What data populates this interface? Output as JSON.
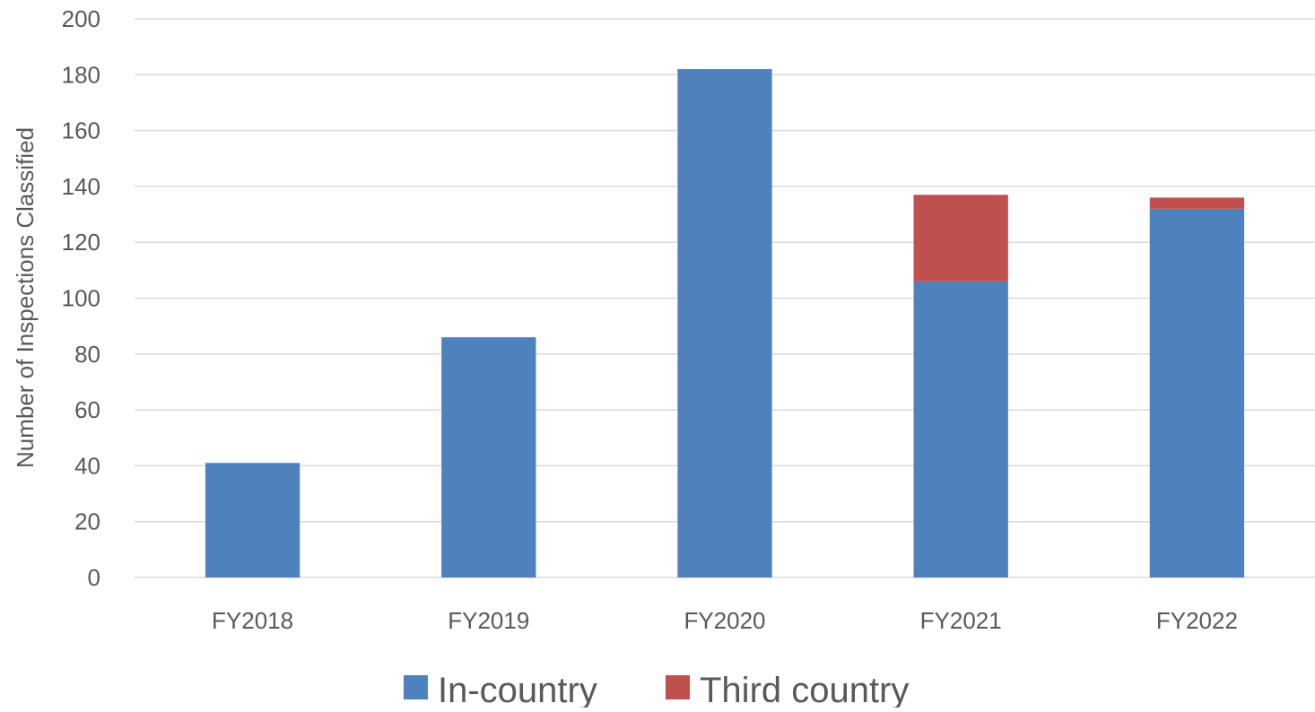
{
  "chart_data": {
    "type": "bar",
    "stacked": true,
    "title": "",
    "xlabel": "",
    "ylabel": "Number of Inspections Classified",
    "ylim": [
      0,
      200
    ],
    "yticks": [
      0,
      20,
      40,
      60,
      80,
      100,
      120,
      140,
      160,
      180,
      200
    ],
    "categories": [
      "FY2018",
      "FY2019",
      "FY2020",
      "FY2021",
      "FY2022"
    ],
    "series": [
      {
        "name": "In-country",
        "values": [
          41,
          86,
          182,
          106,
          132
        ],
        "color": "#4F81BD"
      },
      {
        "name": "Third country",
        "values": [
          0,
          0,
          0,
          31,
          4
        ],
        "color": "#C0504D"
      }
    ],
    "grid": true,
    "legend": "bottom-center"
  }
}
